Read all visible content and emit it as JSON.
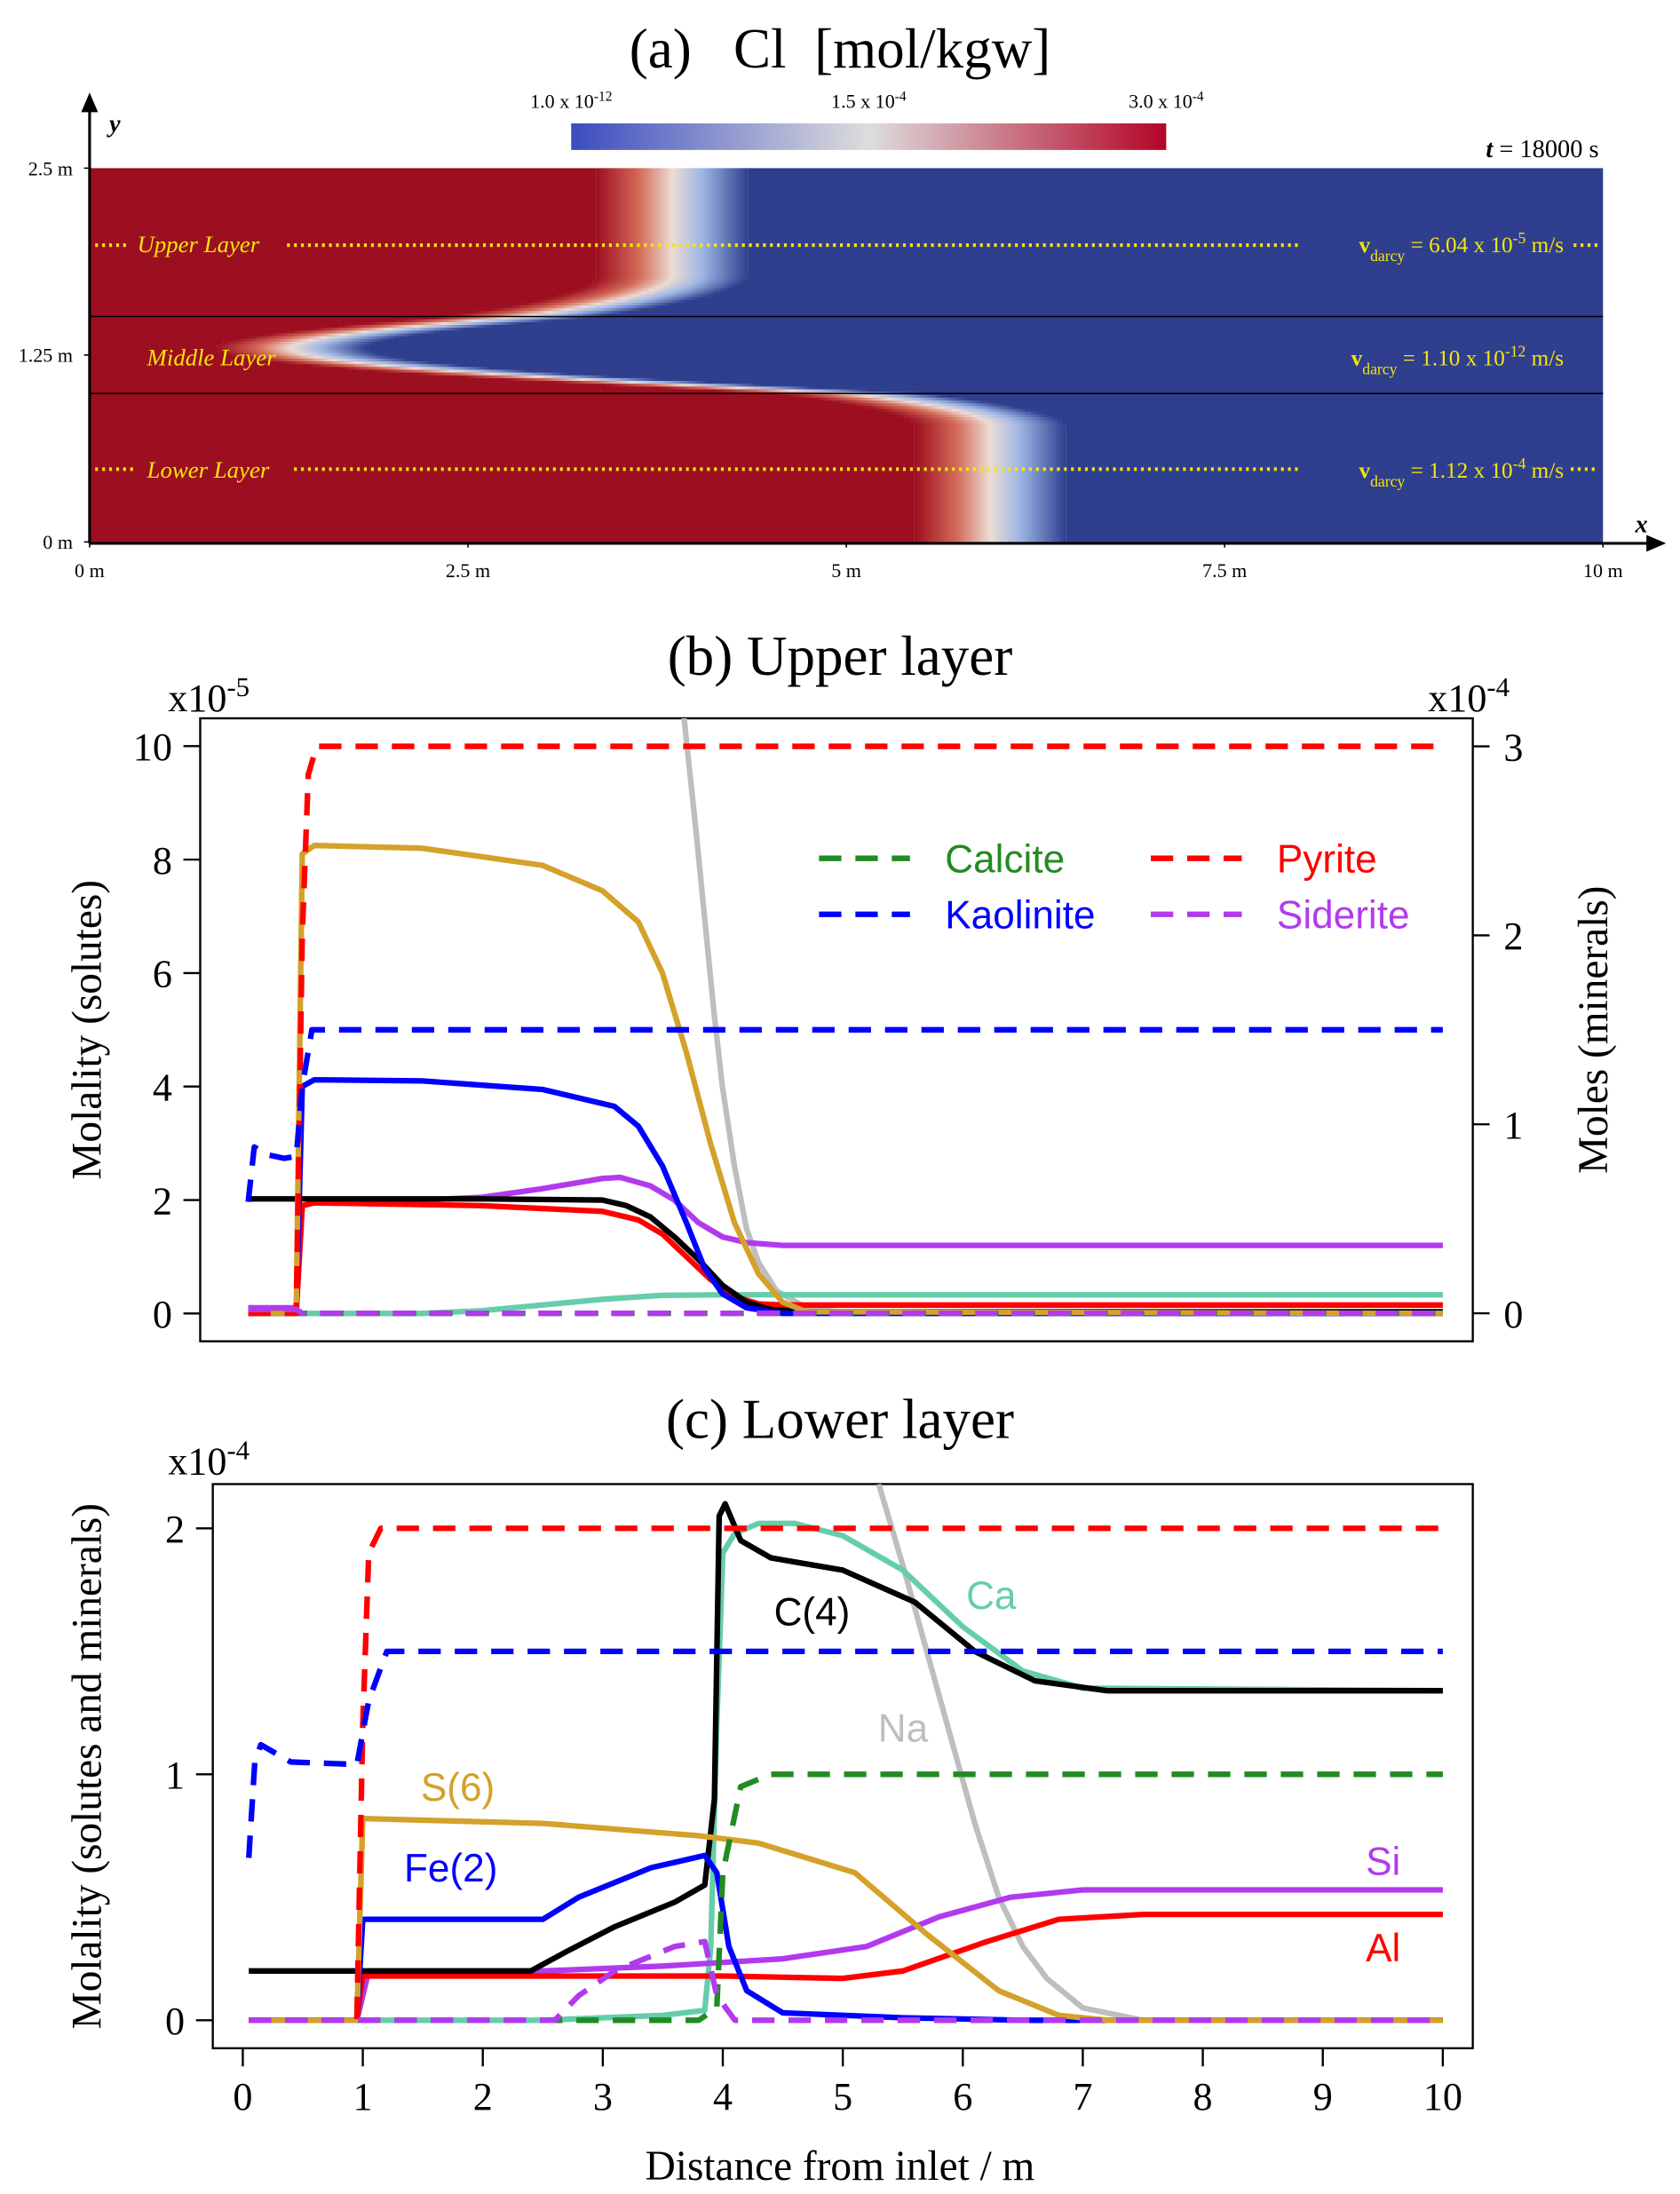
{
  "chart_data": [
    {
      "type": "field",
      "title": "(a)   Cl  [mol/kgw]",
      "x_label": "x",
      "y_label": "y",
      "xlim": [
        0,
        10
      ],
      "xticks": [
        {
          "value": 0,
          "label": "0 m"
        },
        {
          "value": 2.5,
          "label": "2.5 m"
        },
        {
          "value": 5,
          "label": "5 m"
        },
        {
          "value": 7.5,
          "label": "7.5 m"
        },
        {
          "value": 10,
          "label": "10 m"
        }
      ],
      "ylim": [
        0,
        2.5
      ],
      "yticks": [
        {
          "value": 0,
          "label": "0 m"
        },
        {
          "value": 1.25,
          "label": "1.25 m"
        },
        {
          "value": 2.5,
          "label": "2.5 m"
        }
      ],
      "clim": [
        1e-12,
        0.0003
      ],
      "colorbar_ticks": [
        {
          "value": 1e-12,
          "label": "1.0 x 10",
          "exponent": "-12"
        },
        {
          "value": 0.00015,
          "label": "1.5 x 10",
          "exponent": "-4"
        },
        {
          "value": 0.0003,
          "label": "3.0 x 10",
          "exponent": "-4"
        }
      ],
      "time": {
        "symbol": "t",
        "text": " = 18000 s"
      },
      "layers": [
        {
          "name": "Upper Layer",
          "velocity": {
            "symbol": "v",
            "subscript": "darcy",
            "text": " = 6.04 x 10",
            "exponent": "-5",
            "unit": " m/s"
          }
        },
        {
          "name": "Middle Layer",
          "velocity": {
            "symbol": "v",
            "subscript": "darcy",
            "text": " = 1.10 x 10",
            "exponent": "-12",
            "unit": " m/s"
          }
        },
        {
          "name": "Lower Layer",
          "velocity": {
            "symbol": "v",
            "subscript": "darcy",
            "text": " = 1.12 x 10",
            "exponent": "-4",
            "unit": " m/s"
          }
        }
      ]
    },
    {
      "type": "line",
      "title": "(b) Upper layer",
      "y_label": "Molality (solutes)",
      "y2_label": "Moles (minerals)",
      "y_multiplier": {
        "label": "x10",
        "exponent": "-5"
      },
      "y2_multiplier": {
        "label": "x10",
        "exponent": "-4"
      },
      "xlim": [
        -0.35,
        10.25
      ],
      "ylim": [
        -0.49,
        10.49
      ],
      "yticks": [
        0,
        2,
        4,
        6,
        8,
        10
      ],
      "y2lim": [
        -0.148,
        3.148
      ],
      "y2ticks": [
        0,
        1,
        2,
        3
      ],
      "legend": "upper right",
      "series": [
        {
          "color": "#bebebe",
          "x": [
            3.68,
            3.78,
            3.85,
            3.93,
            4.0,
            4.1,
            4.2,
            4.3,
            4.45,
            4.7,
            5.0,
            10
          ],
          "values": [
            10.5,
            8.5,
            7,
            5.3,
            4,
            2.6,
            1.5,
            0.9,
            0.4,
            0.1,
            0.02,
            0
          ]
        },
        {
          "color": "#66cdaa",
          "x": [
            0.05,
            1.5,
            2.0,
            2.5,
            3.0,
            3.5,
            4.0,
            10
          ],
          "values": [
            0,
            0,
            0.05,
            0.15,
            0.25,
            0.32,
            0.33,
            0.33
          ]
        },
        {
          "color": "#b23aee",
          "x": [
            0.05,
            0.45,
            0.5,
            0.6,
            1.5,
            2.0,
            2.5,
            3.0,
            3.15,
            3.4,
            3.6,
            3.8,
            4.0,
            4.2,
            4.5,
            10
          ],
          "values": [
            0.1,
            0.1,
            1.9,
            1.95,
            2.0,
            2.05,
            2.2,
            2.38,
            2.4,
            2.25,
            2.0,
            1.6,
            1.35,
            1.25,
            1.2,
            1.2
          ]
        },
        {
          "color": "#ff0000",
          "x": [
            0.05,
            0.45,
            0.5,
            0.6,
            2.0,
            3.0,
            3.3,
            3.5,
            3.7,
            3.9,
            4.1,
            4.3,
            4.5,
            10
          ],
          "values": [
            0,
            0,
            1.9,
            1.95,
            1.9,
            1.8,
            1.65,
            1.4,
            1.0,
            0.6,
            0.3,
            0.17,
            0.15,
            0.15
          ]
        },
        {
          "color": "#000000",
          "x": [
            0.05,
            1.0,
            2.0,
            3.0,
            3.2,
            3.4,
            3.6,
            3.8,
            4.0,
            4.2,
            4.4,
            4.7,
            10
          ],
          "values": [
            2.02,
            2.02,
            2.02,
            2.0,
            1.9,
            1.7,
            1.35,
            0.95,
            0.5,
            0.2,
            0.07,
            0.03,
            0.03
          ]
        },
        {
          "color": "#0000ff",
          "x": [
            0.05,
            0.45,
            0.5,
            0.6,
            1.5,
            2.5,
            3.1,
            3.3,
            3.5,
            3.7,
            3.85,
            4.0,
            4.2,
            4.5,
            10
          ],
          "values": [
            0,
            0,
            4.0,
            4.12,
            4.1,
            3.95,
            3.65,
            3.3,
            2.6,
            1.6,
            0.8,
            0.35,
            0.1,
            0,
            0
          ]
        },
        {
          "color": "#d4a12a",
          "x": [
            0.05,
            0.45,
            0.5,
            0.6,
            1.5,
            2.5,
            3.0,
            3.3,
            3.5,
            3.7,
            3.9,
            4.1,
            4.3,
            4.5,
            4.7,
            10
          ],
          "values": [
            0,
            0,
            8.1,
            8.25,
            8.2,
            7.9,
            7.45,
            6.9,
            6.0,
            4.6,
            3.0,
            1.6,
            0.7,
            0.2,
            0.03,
            0
          ]
        },
        {
          "name": "Calcite",
          "color": "#228b22",
          "dash": true,
          "axis": "y2",
          "x": [
            0.05,
            10
          ],
          "values": [
            0,
            0
          ]
        },
        {
          "name": "Pyrite",
          "color": "#ff0000",
          "dash": true,
          "axis": "y2",
          "x": [
            0.05,
            0.45,
            0.5,
            0.55,
            0.62,
            10
          ],
          "values": [
            0,
            0,
            2.0,
            2.85,
            3.0,
            3.0
          ]
        },
        {
          "name": "Kaolinite",
          "color": "#0000ff",
          "dash": true,
          "axis": "y2",
          "x": [
            0.05,
            0.1,
            0.2,
            0.35,
            0.45,
            0.5,
            0.58,
            10
          ],
          "values": [
            0.59,
            0.88,
            0.84,
            0.82,
            0.83,
            1.2,
            1.5,
            1.5
          ]
        },
        {
          "name": "Siderite",
          "color": "#b23aee",
          "dash": true,
          "axis": "y2",
          "x": [
            0.05,
            0.45,
            0.5,
            10
          ],
          "values": [
            0.02,
            0.02,
            0,
            0
          ]
        }
      ]
    },
    {
      "type": "line",
      "title": "(c) Lower layer",
      "y_label": "Molality (solutes and minerals)",
      "x_label": "Distance from inlet / m",
      "y_multiplier": {
        "label": "x10",
        "exponent": "-4"
      },
      "xlim": [
        -0.25,
        10.25
      ],
      "xticks": [
        0,
        1,
        2,
        3,
        4,
        5,
        6,
        7,
        8,
        9,
        10
      ],
      "ylim": [
        -0.114,
        2.18
      ],
      "yticks": [
        0,
        1,
        2
      ],
      "series": [
        {
          "name": "Na",
          "color": "#bebebe",
          "x": [
            5.3,
            5.5,
            5.7,
            5.9,
            6.1,
            6.3,
            6.5,
            6.7,
            7.0,
            7.5,
            10
          ],
          "values": [
            2.18,
            1.85,
            1.5,
            1.15,
            0.8,
            0.5,
            0.3,
            0.17,
            0.05,
            0,
            0
          ]
        },
        {
          "name": "Ca",
          "color": "#66cdaa",
          "x": [
            0.05,
            2.5,
            3.5,
            3.85,
            3.9,
            3.95,
            4.0,
            4.1,
            4.3,
            4.6,
            5.0,
            5.5,
            6.0,
            6.5,
            7.0,
            10
          ],
          "values": [
            0,
            0,
            0.02,
            0.04,
            0.3,
            1.2,
            1.9,
            1.98,
            2.02,
            2.02,
            1.97,
            1.83,
            1.6,
            1.42,
            1.35,
            1.34
          ]
        },
        {
          "name": "Si",
          "color": "#b23aee",
          "x": [
            0.05,
            0.95,
            1.05,
            2.5,
            3.5,
            4.5,
            5.2,
            5.8,
            6.4,
            7.0,
            10
          ],
          "values": [
            0,
            0,
            0.2,
            0.2,
            0.22,
            0.25,
            0.3,
            0.42,
            0.5,
            0.53,
            0.53
          ]
        },
        {
          "name": "Al",
          "color": "#ff0000",
          "x": [
            0.05,
            0.95,
            1.0,
            2.5,
            4.0,
            5.0,
            5.5,
            6.2,
            6.8,
            7.5,
            10
          ],
          "values": [
            0,
            0,
            0.18,
            0.18,
            0.18,
            0.17,
            0.2,
            0.32,
            0.41,
            0.43,
            0.43
          ]
        },
        {
          "name": "C(4)",
          "color": "#000000",
          "x": [
            0.05,
            2.4,
            2.7,
            3.1,
            3.6,
            3.85,
            3.93,
            3.97,
            4.02,
            4.15,
            4.4,
            5.0,
            5.6,
            6.1,
            6.6,
            7.2,
            10
          ],
          "values": [
            0.2,
            0.2,
            0.28,
            0.38,
            0.48,
            0.55,
            0.9,
            2.05,
            2.1,
            1.95,
            1.88,
            1.83,
            1.7,
            1.5,
            1.38,
            1.34,
            1.34
          ]
        },
        {
          "name": "Fe(2)",
          "color": "#0000ff",
          "x": [
            0.05,
            0.95,
            1.0,
            2.5,
            2.8,
            3.4,
            3.85,
            3.95,
            4.05,
            4.2,
            4.5,
            5.5,
            6.5,
            10
          ],
          "values": [
            0,
            0,
            0.41,
            0.41,
            0.5,
            0.62,
            0.67,
            0.6,
            0.3,
            0.12,
            0.03,
            0.01,
            0,
            0
          ]
        },
        {
          "name": "S(6)",
          "color": "#d4a12a",
          "x": [
            0.05,
            0.95,
            1.0,
            2.5,
            3.8,
            4.3,
            5.1,
            5.7,
            6.3,
            6.8,
            7.2,
            10
          ],
          "values": [
            0,
            0,
            0.82,
            0.8,
            0.75,
            0.72,
            0.6,
            0.35,
            0.12,
            0.02,
            0,
            0
          ]
        },
        {
          "color": "#228b22",
          "dash": true,
          "x": [
            0.05,
            3.8,
            3.95,
            4.0,
            4.15,
            4.4,
            10
          ],
          "values": [
            0,
            0,
            0.05,
            0.6,
            0.95,
            1.0,
            1.0
          ]
        },
        {
          "color": "#ff0000",
          "dash": true,
          "x": [
            0.05,
            0.95,
            1.0,
            1.05,
            1.15,
            10
          ],
          "values": [
            0,
            0,
            1.2,
            1.9,
            2.0,
            2.0
          ]
        },
        {
          "color": "#0000ff",
          "dash": true,
          "x": [
            0.05,
            0.1,
            0.15,
            0.4,
            0.95,
            1.05,
            1.2,
            10
          ],
          "values": [
            0.66,
            1.05,
            1.12,
            1.05,
            1.04,
            1.3,
            1.5,
            1.5
          ]
        },
        {
          "color": "#b23aee",
          "dash": true,
          "x": [
            0.05,
            2.6,
            2.8,
            3.1,
            3.6,
            3.85,
            3.95,
            4.1,
            10
          ],
          "values": [
            0,
            0,
            0.1,
            0.2,
            0.3,
            0.32,
            0.1,
            0,
            0
          ]
        }
      ]
    }
  ]
}
